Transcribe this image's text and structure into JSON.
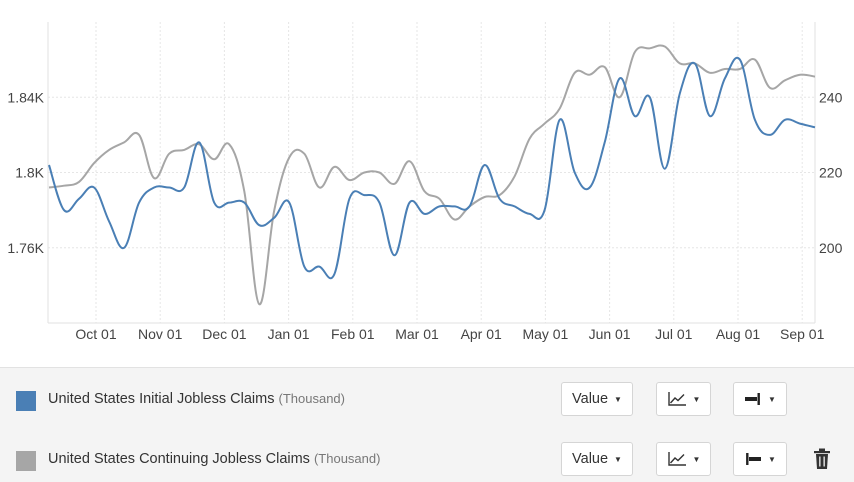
{
  "chart_data": {
    "type": "line",
    "title": "",
    "x_ticks": [
      "Oct 01",
      "Nov 01",
      "Dec 01",
      "Jan 01",
      "Feb 01",
      "Mar 01",
      "Apr 01",
      "May 01",
      "Jun 01",
      "Jul 01",
      "Aug 01",
      "Sep 01"
    ],
    "left_axis": {
      "ticks": [
        "1.76K",
        "1.8K",
        "1.84K"
      ],
      "tick_values": [
        1.76,
        1.8,
        1.84
      ],
      "range": [
        1.72,
        1.88
      ]
    },
    "right_axis": {
      "ticks": [
        "200",
        "220",
        "240"
      ],
      "tick_values": [
        200,
        220,
        240
      ],
      "range": [
        180,
        260
      ]
    },
    "grid": true,
    "series": [
      {
        "name": "United States Initial Jobless Claims",
        "unit": "Thousand",
        "axis": "right",
        "color": "#4a7fb5",
        "x_days": [
          0,
          7,
          14,
          21,
          28,
          35,
          42,
          49,
          56,
          63,
          70,
          77,
          84,
          91,
          98,
          105,
          112,
          119,
          126,
          133,
          140,
          147,
          154,
          161,
          168,
          175,
          182,
          189,
          196,
          203,
          210,
          217,
          224,
          231,
          238,
          245,
          252,
          259,
          266,
          273,
          280,
          287,
          294,
          301,
          308,
          315,
          322,
          329,
          336,
          343,
          350,
          357
        ],
        "values": [
          222,
          210,
          213,
          216,
          207,
          200,
          212,
          216,
          216,
          216,
          228,
          212,
          212,
          212,
          206,
          208,
          212,
          195,
          195,
          193,
          213,
          214,
          212,
          198,
          212,
          209,
          211,
          211,
          211,
          222,
          213,
          211,
          209,
          210,
          234,
          220,
          216,
          228,
          245,
          235,
          240,
          221,
          241,
          249,
          235,
          245,
          250,
          234,
          230,
          234,
          233,
          232
        ]
      },
      {
        "name": "United States Continuing Jobless Claims",
        "unit": "Thousand",
        "axis": "left",
        "color": "#a6a6a6",
        "x_days": [
          0,
          7,
          14,
          21,
          28,
          35,
          42,
          49,
          56,
          63,
          70,
          77,
          84,
          91,
          98,
          105,
          112,
          119,
          126,
          133,
          140,
          147,
          154,
          161,
          168,
          175,
          182,
          189,
          196,
          203,
          210,
          217,
          224,
          231,
          238,
          245,
          252,
          259,
          266,
          273,
          280,
          287,
          294,
          301,
          308,
          315,
          322,
          329,
          336,
          343,
          350,
          357
        ],
        "values": [
          1.792,
          1.793,
          1.795,
          1.805,
          1.812,
          1.816,
          1.82,
          1.797,
          1.81,
          1.812,
          1.815,
          1.807,
          1.815,
          1.79,
          1.73,
          1.78,
          1.808,
          1.81,
          1.792,
          1.803,
          1.796,
          1.8,
          1.8,
          1.794,
          1.806,
          1.79,
          1.786,
          1.775,
          1.782,
          1.787,
          1.788,
          1.798,
          1.818,
          1.826,
          1.834,
          1.853,
          1.852,
          1.856,
          1.84,
          1.864,
          1.866,
          1.867,
          1.858,
          1.858,
          1.853,
          1.855,
          1.855,
          1.86,
          1.845,
          1.849,
          1.852,
          1.851
        ]
      }
    ]
  },
  "legend": [
    {
      "label": "United States Initial Jobless Claims",
      "unit": "(Thousand)",
      "color": "#4a7fb5",
      "value_button": "Value",
      "has_delete": false
    },
    {
      "label": "United States Continuing Jobless Claims",
      "unit": "(Thousand)",
      "color": "#a6a6a6",
      "value_button": "Value",
      "has_delete": true
    }
  ],
  "icons": {
    "chart_type": "line-chart-icon",
    "axis_right": "axis-right-icon",
    "axis_left": "axis-left-icon",
    "delete": "trash-icon",
    "dropdown": "caret-down-icon"
  }
}
